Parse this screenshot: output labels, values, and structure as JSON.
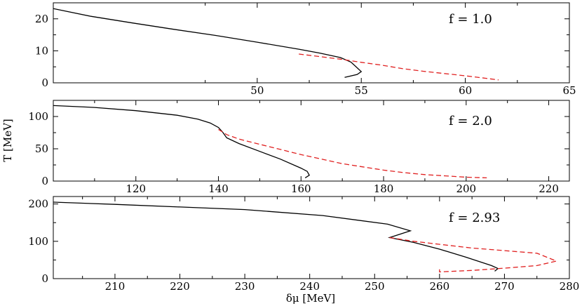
{
  "figure": {
    "ylabel": "T [MeV]",
    "xlabel": "δμ [MeV]"
  },
  "chart_data": [
    {
      "type": "line",
      "annotation": "f = 1.0",
      "xlim": [
        40.2,
        65
      ],
      "ylim": [
        0,
        25
      ],
      "xticks": [
        50,
        55,
        60,
        65
      ],
      "yticks": [
        0,
        10,
        20
      ],
      "series": [
        {
          "color": "#000000",
          "style": "solid",
          "x": [
            40.2,
            42,
            44,
            46,
            48,
            50,
            52,
            53,
            54,
            54.5,
            55,
            54.8,
            54.2
          ],
          "y": [
            23.2,
            20.8,
            18.7,
            16.7,
            14.8,
            12.7,
            10.5,
            9.3,
            7.9,
            6.5,
            3.5,
            2.6,
            1.7
          ]
        },
        {
          "color": "#e02020",
          "style": "dashed",
          "x": [
            52,
            53,
            54,
            55,
            56,
            57,
            58,
            59,
            60,
            61,
            61.6
          ],
          "y": [
            9.0,
            8.2,
            7.4,
            6.4,
            5.5,
            4.4,
            3.6,
            2.9,
            2.2,
            1.4,
            0.9
          ]
        }
      ]
    },
    {
      "type": "line",
      "annotation": "f = 2.0",
      "xlim": [
        100,
        225
      ],
      "ylim": [
        0,
        125
      ],
      "xticks": [
        120,
        140,
        160,
        180,
        200,
        220
      ],
      "yticks": [
        0,
        50,
        100
      ],
      "series": [
        {
          "color": "#000000",
          "style": "solid",
          "x": [
            100,
            110,
            120,
            130,
            135,
            138,
            140,
            141,
            142,
            145,
            150,
            155,
            160,
            161.5,
            162,
            161
          ],
          "y": [
            117,
            114,
            109,
            102,
            96,
            90,
            83,
            76,
            67,
            58,
            46,
            34,
            20,
            15,
            9,
            5
          ]
        },
        {
          "color": "#e02020",
          "style": "dashed",
          "x": [
            140,
            142,
            145,
            150,
            155,
            160,
            165,
            170,
            175,
            180,
            185,
            190,
            195,
            200,
            205
          ],
          "y": [
            80,
            72,
            65,
            57,
            49,
            41,
            34,
            27,
            22,
            17,
            13,
            10,
            8,
            6,
            5
          ]
        }
      ]
    },
    {
      "type": "line",
      "annotation": "f = 2.93",
      "xlim": [
        200.5,
        280
      ],
      "ylim": [
        0,
        220
      ],
      "xticks": [
        210,
        220,
        230,
        240,
        250,
        260,
        270,
        280
      ],
      "yticks": [
        0,
        100,
        200
      ],
      "series": [
        {
          "color": "#000000",
          "style": "solid",
          "x": [
            200.5,
            210,
            220,
            230,
            242,
            252,
            255.5,
            252.3,
            256,
            260,
            264,
            268,
            269,
            268.5
          ],
          "y": [
            205,
            199,
            192,
            185,
            169,
            146,
            128,
            110,
            97,
            79,
            58,
            35,
            27,
            20
          ]
        },
        {
          "color": "#e02020",
          "style": "dashed",
          "x": [
            252.3,
            256,
            260,
            265,
            270,
            275,
            278,
            275,
            270,
            265,
            260,
            260
          ],
          "y": [
            110,
            100,
            92,
            82,
            75,
            68,
            47,
            35,
            28,
            22,
            18,
            25
          ]
        }
      ]
    }
  ]
}
